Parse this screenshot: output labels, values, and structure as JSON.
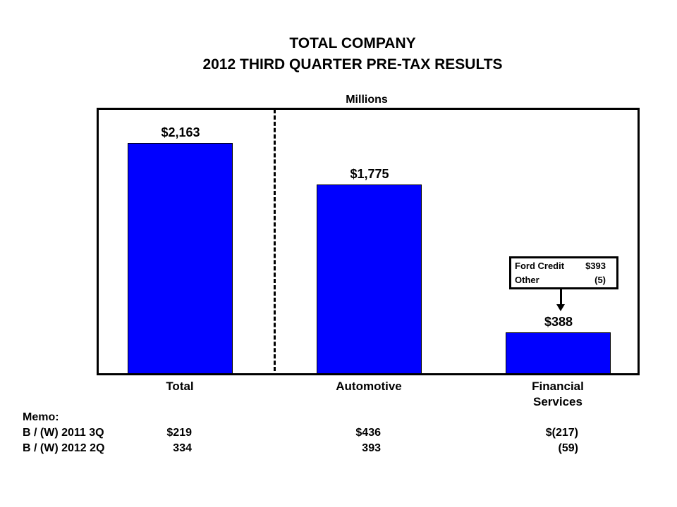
{
  "chart_data": {
    "type": "bar",
    "title": "TOTAL COMPANY",
    "subtitle": "2012 THIRD QUARTER PRE-TAX RESULTS",
    "ylabel": "Millions",
    "categories": [
      "Total",
      "Automotive",
      "Financial Services"
    ],
    "category_lines": [
      [
        "Total"
      ],
      [
        "Automotive"
      ],
      [
        "Financial",
        "Services"
      ]
    ],
    "values": [
      2163,
      1775,
      388
    ],
    "data_labels": [
      "$2,163",
      "$1,775",
      "$388"
    ],
    "ylim": [
      0,
      2490
    ],
    "bar_color": "#0000ff",
    "annotation": {
      "rows": [
        {
          "label": "Ford Credit",
          "value": "$393"
        },
        {
          "label": "Other",
          "value": "(5)"
        }
      ]
    }
  },
  "memo": {
    "heading": "Memo:",
    "rows": [
      {
        "label": "B / (W) 2011 3Q",
        "values": [
          "$219",
          "$436",
          "$(217)"
        ]
      },
      {
        "label": "B / (W) 2012 2Q",
        "values": [
          "334",
          "393",
          "(59)"
        ]
      }
    ]
  }
}
